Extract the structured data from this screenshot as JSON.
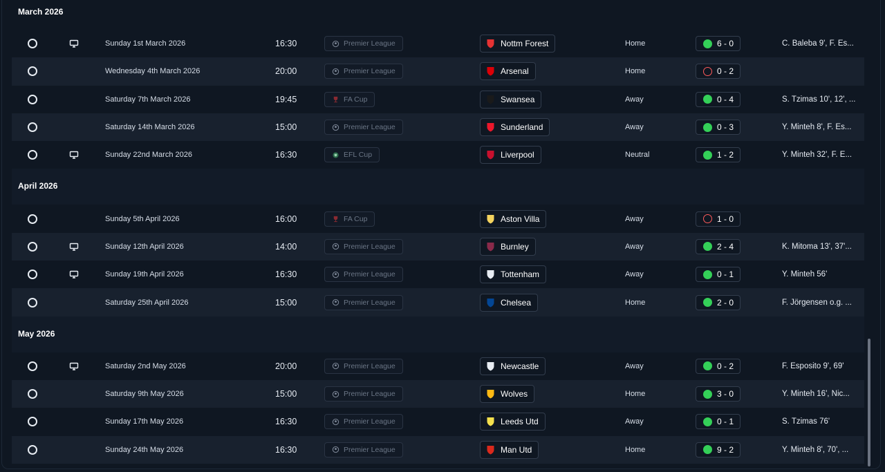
{
  "months": [
    {
      "title": "March 2026",
      "fixtures": [
        {
          "tv": true,
          "date": "Sunday 1st March 2026",
          "time": "16:30",
          "competition": "Premier League",
          "comp_icon": "premier-league-icon",
          "team": "Nottm Forest",
          "crest": "nottm-forest-crest",
          "crest_color": "#e53233",
          "venue": "Home",
          "outcome": "win",
          "score": "6 - 0",
          "scorers": "C. Baleba 9', F. Es..."
        },
        {
          "tv": false,
          "date": "Wednesday 4th March 2026",
          "time": "20:00",
          "competition": "Premier League",
          "comp_icon": "premier-league-icon",
          "team": "Arsenal",
          "crest": "arsenal-crest",
          "crest_color": "#db0007",
          "venue": "Home",
          "outcome": "loss",
          "score": "0 - 2",
          "scorers": ""
        },
        {
          "tv": false,
          "date": "Saturday 7th March 2026",
          "time": "19:45",
          "competition": "FA Cup",
          "comp_icon": "fa-cup-icon",
          "team": "Swansea",
          "crest": "swansea-crest",
          "crest_color": "#1a1a1a",
          "venue": "Away",
          "outcome": "win",
          "score": "0 - 4",
          "scorers": "S. Tzimas 10', 12', ..."
        },
        {
          "tv": false,
          "date": "Saturday 14th March 2026",
          "time": "15:00",
          "competition": "Premier League",
          "comp_icon": "premier-league-icon",
          "team": "Sunderland",
          "crest": "sunderland-crest",
          "crest_color": "#eb172b",
          "venue": "Away",
          "outcome": "win",
          "score": "0 - 3",
          "scorers": "Y. Minteh 8', F. Es..."
        },
        {
          "tv": true,
          "date": "Sunday 22nd March 2026",
          "time": "16:30",
          "competition": "EFL Cup",
          "comp_icon": "efl-cup-icon",
          "team": "Liverpool",
          "crest": "liverpool-crest",
          "crest_color": "#c8102e",
          "venue": "Neutral",
          "outcome": "win",
          "score": "1 - 2",
          "scorers": "Y. Minteh 32', F. E..."
        }
      ]
    },
    {
      "title": "April 2026",
      "fixtures": [
        {
          "tv": false,
          "date": "Sunday 5th April 2026",
          "time": "16:00",
          "competition": "FA Cup",
          "comp_icon": "fa-cup-icon",
          "team": "Aston Villa",
          "crest": "aston-villa-crest",
          "crest_color": "#f4d35e",
          "venue": "Away",
          "outcome": "loss",
          "score": "1 - 0",
          "scorers": ""
        },
        {
          "tv": true,
          "date": "Sunday 12th April 2026",
          "time": "14:00",
          "competition": "Premier League",
          "comp_icon": "premier-league-icon",
          "team": "Burnley",
          "crest": "burnley-crest",
          "crest_color": "#8a2a4a",
          "venue": "Away",
          "outcome": "win",
          "score": "2 - 4",
          "scorers": "K. Mitoma 13', 37'..."
        },
        {
          "tv": true,
          "date": "Sunday 19th April 2026",
          "time": "16:30",
          "competition": "Premier League",
          "comp_icon": "premier-league-icon",
          "team": "Tottenham",
          "crest": "tottenham-crest",
          "crest_color": "#e8edf3",
          "venue": "Away",
          "outcome": "win",
          "score": "0 - 1",
          "scorers": "Y. Minteh 56'"
        },
        {
          "tv": false,
          "date": "Saturday 25th April 2026",
          "time": "15:00",
          "competition": "Premier League",
          "comp_icon": "premier-league-icon",
          "team": "Chelsea",
          "crest": "chelsea-crest",
          "crest_color": "#034694",
          "venue": "Home",
          "outcome": "win",
          "score": "2 - 0",
          "scorers": "F. Jörgensen o.g. ..."
        }
      ]
    },
    {
      "title": "May 2026",
      "fixtures": [
        {
          "tv": true,
          "date": "Saturday 2nd May 2026",
          "time": "20:00",
          "competition": "Premier League",
          "comp_icon": "premier-league-icon",
          "team": "Newcastle",
          "crest": "newcastle-crest",
          "crest_color": "#e8edf3",
          "venue": "Away",
          "outcome": "win",
          "score": "0 - 2",
          "scorers": "F. Esposito 9', 69'"
        },
        {
          "tv": false,
          "date": "Saturday 9th May 2026",
          "time": "15:00",
          "competition": "Premier League",
          "comp_icon": "premier-league-icon",
          "team": "Wolves",
          "crest": "wolves-crest",
          "crest_color": "#fdb913",
          "venue": "Home",
          "outcome": "win",
          "score": "3 - 0",
          "scorers": "Y. Minteh 16', Nic..."
        },
        {
          "tv": false,
          "date": "Sunday 17th May 2026",
          "time": "16:30",
          "competition": "Premier League",
          "comp_icon": "premier-league-icon",
          "team": "Leeds Utd",
          "crest": "leeds-crest",
          "crest_color": "#f4e04d",
          "venue": "Away",
          "outcome": "win",
          "score": "0 - 1",
          "scorers": "S. Tzimas 76'"
        },
        {
          "tv": false,
          "date": "Sunday 24th May 2026",
          "time": "16:30",
          "competition": "Premier League",
          "comp_icon": "premier-league-icon",
          "team": "Man Utd",
          "crest": "man-utd-crest",
          "crest_color": "#da291c",
          "venue": "Home",
          "outcome": "win",
          "score": "9 - 2",
          "scorers": "Y. Minteh 8', 70', ..."
        }
      ]
    }
  ]
}
